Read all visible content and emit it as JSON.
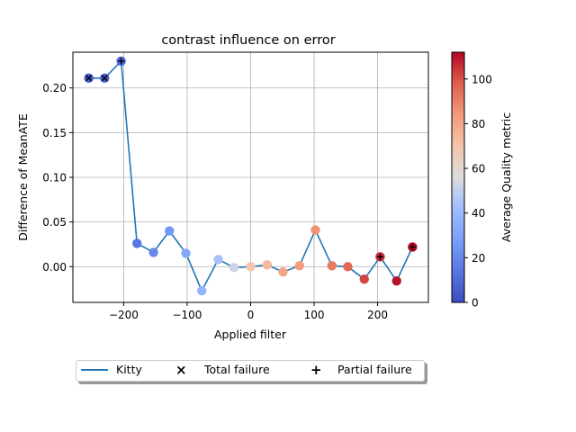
{
  "chart_data": {
    "type": "scatter",
    "title": "contrast influence on error",
    "xlabel": "Applied filter",
    "ylabel": "Difference of MeanATE",
    "xlim": [
      -280,
      280
    ],
    "ylim": [
      -0.04,
      0.24
    ],
    "xticks": [
      "-200",
      "-100",
      "0",
      "100",
      "200"
    ],
    "xtick_values": [
      -200,
      -100,
      0,
      100,
      200
    ],
    "yticks": [
      "0.00",
      "0.05",
      "0.10",
      "0.15",
      "0.20"
    ],
    "ytick_values": [
      0,
      0.05,
      0.1,
      0.15,
      0.2
    ],
    "grid": true,
    "series": [
      {
        "name": "Kitty",
        "x": [
          -255,
          -230,
          -204,
          -179,
          -153,
          -128,
          -102,
          -77,
          -51,
          -26,
          0,
          26,
          51,
          77,
          102,
          128,
          153,
          179,
          204,
          230,
          255
        ],
        "y": [
          0.211,
          0.211,
          0.23,
          0.026,
          0.016,
          0.04,
          0.015,
          -0.027,
          0.008,
          -0.001,
          0.0,
          0.002,
          -0.006,
          0.001,
          0.041,
          0.001,
          0.0,
          -0.014,
          0.011,
          -0.016,
          0.022
        ],
        "quality": [
          4,
          6,
          8,
          14,
          20,
          26,
          32,
          38,
          44,
          52,
          70,
          74,
          80,
          84,
          86,
          92,
          96,
          102,
          106,
          110,
          112
        ],
        "marker": [
          "total",
          "total",
          "partial",
          "none",
          "none",
          "none",
          "none",
          "none",
          "none",
          "none",
          "none",
          "none",
          "none",
          "none",
          "none",
          "none",
          "none",
          "none",
          "partial",
          "none",
          "partial"
        ]
      }
    ],
    "legend": {
      "placement": "below",
      "entries": [
        "Kitty",
        "Total failure",
        "Partial failure"
      ]
    },
    "colorbar": {
      "label": "Average Quality metric",
      "range": [
        0,
        112
      ],
      "ticks": [
        "0",
        "20",
        "40",
        "60",
        "80",
        "100"
      ],
      "tick_values": [
        0,
        20,
        40,
        60,
        80,
        100
      ],
      "colormap": "coolwarm"
    },
    "colors": {
      "line": "#1f77b4",
      "grid": "#b0b0b0"
    }
  }
}
